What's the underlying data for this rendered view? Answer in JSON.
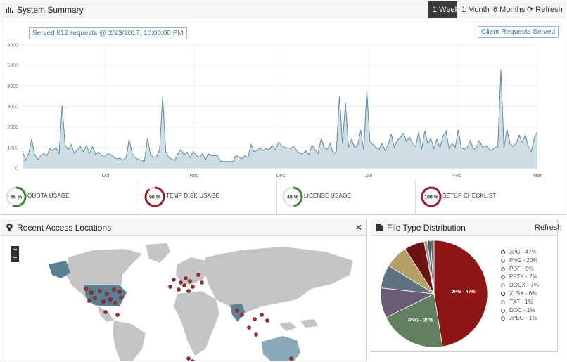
{
  "summary": {
    "title": "System Summary",
    "range_buttons": [
      "1 Week",
      "1 Month",
      "6 Months"
    ],
    "active_range": "1 Week",
    "refresh_label": "Refresh",
    "tooltip": "Served 812 requests @ 2/23/2017, 10:00:00 PM",
    "legend_label": "Client Requests Served"
  },
  "chart_data": {
    "type": "area",
    "series": [
      {
        "name": "Client Requests Served",
        "values": [
          820,
          380,
          700,
          1400,
          650,
          420,
          600,
          700,
          600,
          950,
          850,
          1000,
          700,
          3050,
          1100,
          900,
          1150,
          700,
          900,
          1050,
          800,
          1100,
          720,
          1050,
          650,
          780,
          620,
          550,
          700,
          650,
          520,
          450,
          480,
          380,
          500,
          1400,
          700,
          500,
          420,
          380,
          330,
          1450,
          650,
          520,
          550,
          900,
          3500,
          800,
          520,
          420,
          380,
          700,
          900,
          650,
          780,
          500,
          800,
          620,
          520,
          700,
          400,
          700,
          600,
          600,
          600,
          350,
          320,
          320,
          320,
          300,
          600,
          550,
          450,
          600,
          500,
          1150,
          800,
          850,
          1000,
          850,
          950,
          900,
          1100,
          880,
          1250,
          1100,
          1000,
          980,
          950,
          1050,
          850,
          720,
          700,
          850,
          650,
          1100,
          900,
          700,
          1450,
          1000,
          900,
          1200,
          700,
          800,
          3500,
          1200,
          3200,
          1000,
          1400,
          1000,
          1100,
          1850,
          850,
          3800,
          1300,
          1150,
          1000,
          900,
          1200,
          850,
          1150,
          1650,
          1000,
          1350,
          1500,
          1700,
          1300,
          1500,
          1200,
          1050,
          1750,
          900,
          1800,
          1200,
          1450,
          950,
          1400,
          1000,
          1550,
          1800,
          950,
          1200,
          1000,
          1850,
          1000,
          900,
          1000,
          1350,
          900,
          1000,
          1350,
          1000,
          1100,
          950,
          850,
          1000,
          1050,
          4800,
          1000,
          1900,
          1200,
          1050,
          1200,
          1600,
          1250,
          1600,
          1050,
          800,
          1500,
          1750
        ]
      }
    ],
    "x_labels": [
      "Oct",
      "Nov",
      "Dec",
      "Jan",
      "Feb",
      "Mar"
    ],
    "y_ticks": [
      "0",
      "1000",
      "2000",
      "3000",
      "4000",
      "5000",
      "6000"
    ],
    "ylim": [
      0,
      6000
    ],
    "color": "#5d8aa0"
  },
  "stats": [
    {
      "value": 56,
      "label_value": "56 %",
      "label": "QUOTA USAGE",
      "color": "#3e7d3a"
    },
    {
      "value": 90,
      "label_value": "90 %",
      "label": "TEMP DISK USAGE",
      "color": "#9a1b2c"
    },
    {
      "value": 48,
      "label_value": "48 %",
      "label": "LICENSE USAGE",
      "color": "#3e7d3a"
    },
    {
      "value": 100,
      "label_value": "100 %",
      "label": "SETUP CHECKLIST",
      "color": "#9a1b2c"
    }
  ],
  "access": {
    "title": "Recent Access Locations",
    "close_label": "×",
    "zoom_in": "+",
    "zoom_out": "−"
  },
  "files": {
    "title": "File Type Distribution",
    "refresh_label": "Refresh",
    "slices": [
      {
        "name": "JPG",
        "legend": "JPG - 47%",
        "value": 47,
        "color": "#8e1515",
        "inner_label": "JPG - 47%"
      },
      {
        "name": "PNG",
        "legend": "PNG - 20%",
        "value": 20,
        "color": "#627f62",
        "inner_label": "PNG - 20%"
      },
      {
        "name": "PDF",
        "legend": "PDF - 9%",
        "value": 9,
        "color": "#6a5c72",
        "inner_label": ""
      },
      {
        "name": "PPTX",
        "legend": "PPTX - 7%",
        "value": 7,
        "color": "#5e7280",
        "inner_label": ""
      },
      {
        "name": "DOCX",
        "legend": "DOCX - 7%",
        "value": 7,
        "color": "#b3a064",
        "inner_label": ""
      },
      {
        "name": "XLSX",
        "legend": "XLSX - 6%",
        "value": 6,
        "color": "#6e1212",
        "inner_label": ""
      },
      {
        "name": "TXT",
        "legend": "TXT - 1%",
        "value": 1,
        "color": "#9a9a9a",
        "inner_label": ""
      },
      {
        "name": "DOC",
        "legend": "DOC - 1%",
        "value": 1,
        "color": "#4a5e6a",
        "inner_label": ""
      },
      {
        "name": "JPEG",
        "legend": "JPEG - 1%",
        "value": 1,
        "color": "#6a6a6a",
        "inner_label": ""
      }
    ]
  }
}
